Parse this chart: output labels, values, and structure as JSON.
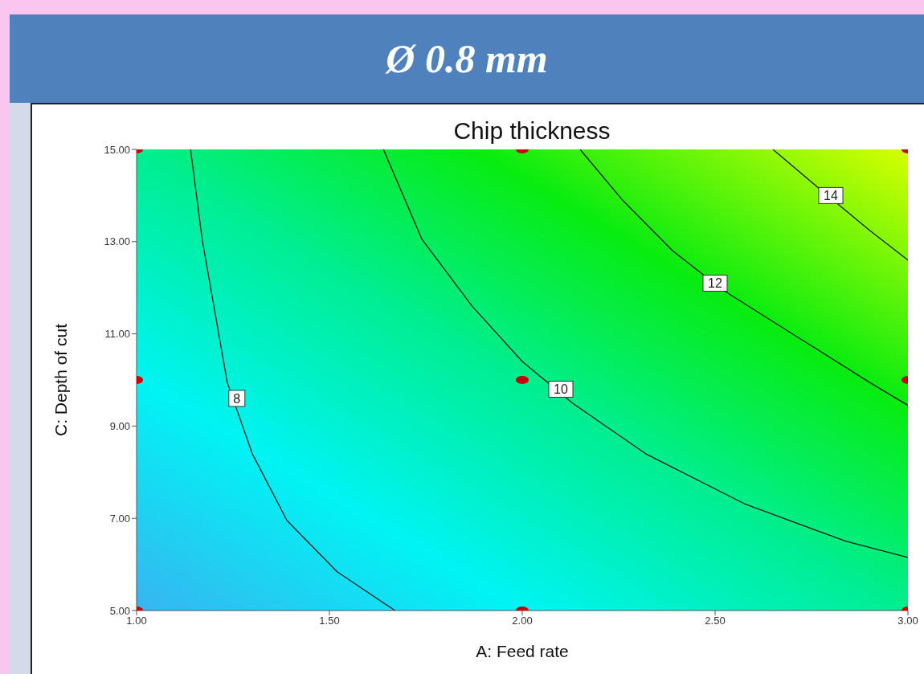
{
  "chart_data": {
    "type": "line",
    "title": "Ø 0.8 mm",
    "subtitle": "Chip thickness",
    "xlabel": "A: Feed rate",
    "ylabel": "C: Depth of cut",
    "xlim": [
      1,
      3
    ],
    "xticks": [
      {
        "value": 1,
        "label": "1.00"
      },
      {
        "value": 1.5,
        "label": "1.50"
      },
      {
        "value": 2,
        "label": "2.00"
      },
      {
        "value": 2.5,
        "label": "2.50"
      },
      {
        "value": 3,
        "label": "3.00"
      }
    ],
    "ylim": [
      5,
      15
    ],
    "yticks": [
      {
        "value": 5,
        "label": "5.00"
      },
      {
        "value": 7,
        "label": "7.00"
      },
      {
        "value": 9,
        "label": "9.00"
      },
      {
        "value": 11,
        "label": "11.00"
      },
      {
        "value": 13,
        "label": "13.00"
      },
      {
        "value": 15,
        "label": "15.00"
      }
    ],
    "grid": false,
    "legend": false,
    "marker": "none",
    "line_style": "solid",
    "series": [
      {
        "color": "#1a1a1a",
        "x": [
          1.14,
          1.17,
          1.235,
          1.3,
          1.39,
          1.52,
          1.67
        ],
        "values": [
          15,
          13.05,
          9.95,
          8.4,
          6.95,
          5.84,
          5
        ]
      },
      {
        "color": "#1a1a1a",
        "x": [
          1.64,
          1.74,
          1.87,
          2.0,
          2.13,
          2.32,
          2.58,
          2.84,
          3.0
        ],
        "values": [
          15,
          13.05,
          11.6,
          10.4,
          9.5,
          8.4,
          7.3,
          6.5,
          6.15
        ]
      },
      {
        "color": "#1a1a1a",
        "x": [
          2.15,
          2.26,
          2.39,
          2.52,
          2.71,
          2.9,
          3.0
        ],
        "values": [
          15,
          13.9,
          12.8,
          11.95,
          10.95,
          9.95,
          9.45
        ]
      },
      {
        "color": "#1a1a1a",
        "x": [
          2.65,
          2.77,
          2.9,
          3.0
        ],
        "values": [
          15,
          14.15,
          13.25,
          12.6
        ]
      },
      {
        "type": "scatter",
        "marker": "circle",
        "color": "#cc0000",
        "x": [
          1,
          2,
          3,
          1,
          2,
          3,
          1,
          2,
          3
        ],
        "values": [
          5,
          5,
          5,
          10,
          10,
          10,
          15,
          15,
          15
        ]
      }
    ],
    "annotations": [
      {
        "text": "8",
        "x": 1.26,
        "y": 9.6
      },
      {
        "text": "10",
        "x": 2.1,
        "y": 9.8
      },
      {
        "text": "12",
        "x": 2.5,
        "y": 12.1
      },
      {
        "text": "14",
        "x": 2.8,
        "y": 14.0
      }
    ]
  }
}
